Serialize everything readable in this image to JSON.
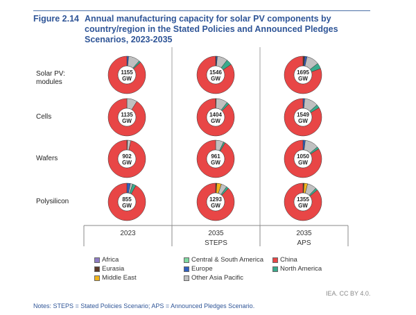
{
  "figure_label": "Figure 2.14",
  "chart_data": {
    "type": "pie",
    "title": "Annual manufacturing capacity for solar PV components by country/region in the Stated Policies and Announced Pledges Scenarios, 2023-2035",
    "rows": [
      "Solar PV: modules",
      "Cells",
      "Wafers",
      "Polysilicon"
    ],
    "columns": [
      {
        "year": "2023",
        "scenario": ""
      },
      {
        "year": "2035",
        "scenario": "STEPS"
      },
      {
        "year": "2035",
        "scenario": "APS"
      }
    ],
    "regions": [
      "Africa",
      "Eurasia",
      "Middle East",
      "Europe",
      "Other Asia Pacific",
      "Central & South America",
      "North America",
      "China"
    ],
    "colors": {
      "Africa": "#8e7cc3",
      "Eurasia": "#5b3a29",
      "Middle East": "#f2b51b",
      "Europe": "#2f5fbf",
      "Other Asia Pacific": "#c0c0c0",
      "Central & South America": "#7fd8a0",
      "North America": "#3aaa8c",
      "China": "#e84646"
    },
    "unit": "GW",
    "totals": [
      [
        1155,
        1546,
        1695
      ],
      [
        1135,
        1404,
        1549
      ],
      [
        902,
        961,
        1050
      ],
      [
        855,
        1293,
        1355
      ]
    ],
    "shares_percent": [
      [
        {
          "Europe": 1.5,
          "Other Asia Pacific": 10,
          "North America": 1.5,
          "China": 87
        },
        {
          "Eurasia": 0.5,
          "Europe": 1,
          "Other Asia Pacific": 9,
          "North America": 5,
          "China": 84.5
        },
        {
          "Europe": 2,
          "Eurasia": 1.5,
          "Other Asia Pacific": 11,
          "North America": 5,
          "China": 80.5
        }
      ],
      [
        {
          "Other Asia Pacific": 9,
          "China": 91
        },
        {
          "Eurasia": 0.5,
          "Other Asia Pacific": 10,
          "North America": 2,
          "China": 87.5
        },
        {
          "Europe": 1.5,
          "Other Asia Pacific": 12,
          "North America": 3,
          "China": 83.5
        }
      ],
      [
        {
          "Eurasia": 0.5,
          "Other Asia Pacific": 3,
          "China": 96.5
        },
        {
          "Other Asia Pacific": 7,
          "North America": 1.5,
          "China": 91.5
        },
        {
          "Europe": 2,
          "Other Asia Pacific": 12,
          "North America": 2,
          "China": 84
        }
      ],
      [
        {
          "Europe": 3,
          "Other Asia Pacific": 2,
          "North America": 3,
          "China": 92
        },
        {
          "Eurasia": 1,
          "Middle East": 4,
          "Other Asia Pacific": 5,
          "North America": 2,
          "China": 88
        },
        {
          "Eurasia": 1,
          "Middle East": 3,
          "Other Asia Pacific": 8,
          "North America": 2,
          "China": 86
        }
      ]
    ],
    "legend": [
      [
        "Africa",
        "Central & South America",
        "China"
      ],
      [
        "Eurasia",
        "Europe",
        "North America"
      ],
      [
        "Middle East",
        "Other Asia Pacific"
      ]
    ],
    "legend_position": "bottom"
  },
  "row_labels": [
    "Solar PV:\nmodules",
    "Cells",
    "Wafers",
    "Polysilicon"
  ],
  "credit": "IEA. CC BY 4.0.",
  "notes": "Notes: STEPS = Stated Policies Scenario; APS = Announced Pledges Scenario."
}
